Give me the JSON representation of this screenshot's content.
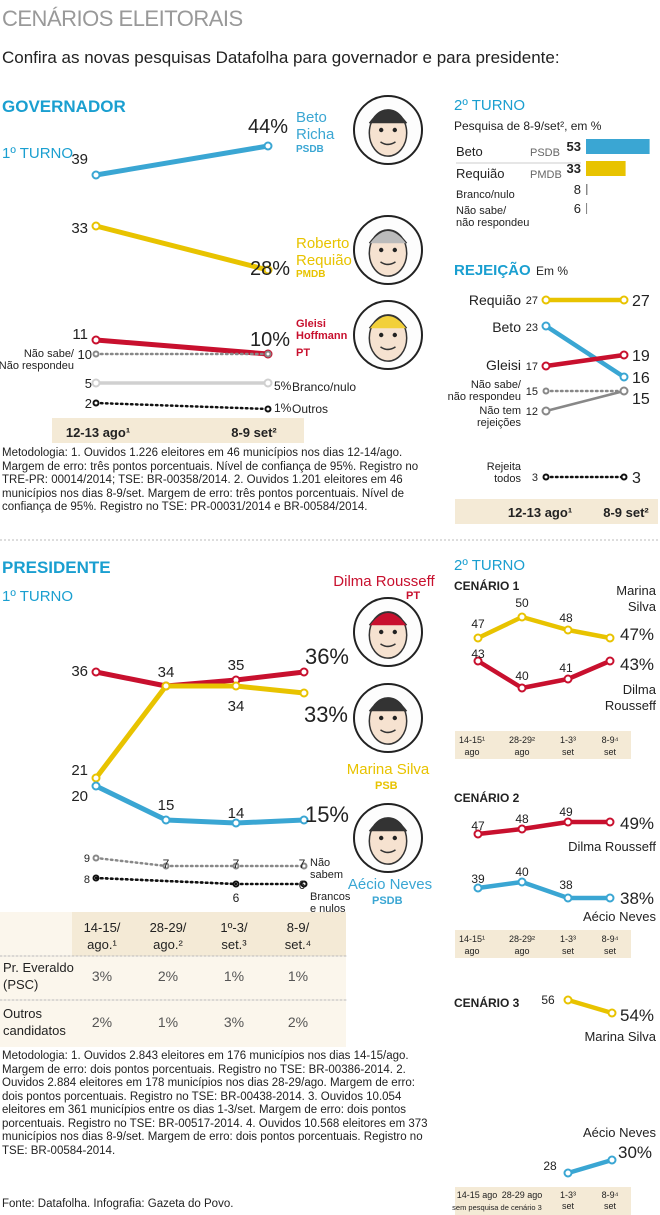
{
  "header": {
    "title": "CENÁRIOS ELEITORAIS",
    "subtitle": "Confira as novas pesquisas Datafolha para governador e para presidente:"
  },
  "colors": {
    "blue": "#3aa6d3",
    "yellow": "#e8c300",
    "red": "#c8102e",
    "gray": "#888888",
    "lightgray": "#d0d0d0",
    "beige": "#f4ead6",
    "accent": "#1a9fd0"
  },
  "chart_data": [
    {
      "id": "governador-1turno",
      "type": "line",
      "title": "GOVERNADOR",
      "subtitle": "1º TURNO",
      "categories": [
        "12-13 ago¹",
        "8-9 set²"
      ],
      "series": [
        {
          "name": "Beto Richa",
          "party": "PSDB",
          "color": "blue",
          "values": [
            39,
            44
          ],
          "labels": [
            "39",
            "44%"
          ]
        },
        {
          "name": "Roberto Requião",
          "party": "PMDB",
          "color": "yellow",
          "values": [
            33,
            28
          ],
          "labels": [
            "33",
            "28%"
          ]
        },
        {
          "name": "Gleisi Hoffmann",
          "party": "PT",
          "color": "red",
          "values": [
            11,
            10
          ],
          "labels": [
            "11",
            "10%"
          ]
        },
        {
          "name": "Não sabe/ Não respondeu",
          "color": "gray",
          "style": "dotted",
          "values": [
            10,
            10
          ],
          "labels": [
            "10",
            ""
          ]
        },
        {
          "name": "Branco/nulo",
          "color": "lightgray",
          "values": [
            5,
            5
          ],
          "labels": [
            "5",
            "5%"
          ]
        },
        {
          "name": "Outros",
          "color": "black",
          "style": "dotted",
          "values": [
            2,
            1
          ],
          "labels": [
            "2",
            "1%"
          ]
        }
      ]
    },
    {
      "id": "governador-2turno",
      "type": "bar",
      "title": "2º TURNO",
      "subtitle": "Pesquisa de 8-9/set², em %",
      "categories": [
        "Beto",
        "Requião",
        "Branco/nulo",
        "Não sabe/ não respondeu"
      ],
      "parties": [
        "PSDB",
        "PMDB",
        "",
        ""
      ],
      "values": [
        53,
        33,
        8,
        6
      ],
      "colors": [
        "blue",
        "yellow",
        "gray",
        "gray"
      ]
    },
    {
      "id": "governador-rejeicao",
      "type": "line",
      "title": "REJEIÇÃO",
      "subtitle": "Em %",
      "categories": [
        "12-13 ago¹",
        "8-9 set²"
      ],
      "series": [
        {
          "name": "Requião",
          "color": "yellow",
          "values": [
            27,
            27
          ]
        },
        {
          "name": "Beto",
          "color": "blue",
          "values": [
            23,
            16
          ]
        },
        {
          "name": "Gleisi",
          "color": "red",
          "values": [
            17,
            19
          ]
        },
        {
          "name": "Não sabe/ não respondeu",
          "color": "gray",
          "style": "dotted",
          "values": [
            15,
            15
          ]
        },
        {
          "name": "Não tem rejeições",
          "color": "gray",
          "values": [
            12,
            15
          ]
        },
        {
          "name": "Rejeita todos",
          "color": "black",
          "style": "dotted",
          "values": [
            3,
            3
          ]
        }
      ]
    },
    {
      "id": "presidente-1turno",
      "type": "line",
      "title": "PRESIDENTE",
      "subtitle": "1º TURNO",
      "categories": [
        "14-15/ ago.¹",
        "28-29/ ago.²",
        "1º-3/ set.³",
        "8-9/ set.⁴"
      ],
      "series": [
        {
          "name": "Dilma Rousseff",
          "party": "PT",
          "color": "red",
          "values": [
            36,
            34,
            35,
            36
          ]
        },
        {
          "name": "Marina Silva",
          "party": "PSB",
          "color": "yellow",
          "values": [
            21,
            34,
            34,
            33
          ]
        },
        {
          "name": "Aécio Neves",
          "party": "PSDB",
          "color": "blue",
          "values": [
            20,
            15,
            14,
            15
          ]
        },
        {
          "name": "Não sabem",
          "color": "gray",
          "style": "dotted",
          "values": [
            9,
            7,
            7,
            7
          ]
        },
        {
          "name": "Brancos e nulos",
          "color": "black",
          "style": "dotted",
          "values": [
            8,
            null,
            6,
            6
          ]
        }
      ],
      "table": {
        "rows": [
          {
            "label": "Pr. Everaldo (PSC)",
            "values": [
              "3%",
              "2%",
              "1%",
              "1%"
            ]
          },
          {
            "label": "Outros candidatos",
            "values": [
              "2%",
              "1%",
              "3%",
              "2%"
            ]
          }
        ]
      }
    },
    {
      "id": "presidente-2turno-cenario1",
      "type": "line",
      "title": "CENÁRIO 1",
      "categories": [
        "14-15¹ ago",
        "28-29² ago",
        "1-3³ set",
        "8-9⁴ set"
      ],
      "series": [
        {
          "name": "Marina Silva",
          "color": "yellow",
          "values": [
            47,
            50,
            48,
            47
          ]
        },
        {
          "name": "Dilma Rousseff",
          "color": "red",
          "values": [
            43,
            40,
            41,
            43
          ]
        }
      ]
    },
    {
      "id": "presidente-2turno-cenario2",
      "type": "line",
      "title": "CENÁRIO 2",
      "categories": [
        "14-15¹ ago",
        "28-29² ago",
        "1-3³ set",
        "8-9⁴ set"
      ],
      "series": [
        {
          "name": "Dilma Rousseff",
          "color": "red",
          "values": [
            47,
            48,
            49,
            49
          ]
        },
        {
          "name": "Aécio Neves",
          "color": "blue",
          "values": [
            39,
            40,
            38,
            38
          ]
        }
      ]
    },
    {
      "id": "presidente-2turno-cenario3",
      "type": "line",
      "title": "CENÁRIO 3",
      "categories": [
        "14-15 ago",
        "28-29 ago",
        "1-3³ set",
        "8-9⁴ set"
      ],
      "note": "sem pesquisa de cenário 3",
      "series": [
        {
          "name": "Marina Silva",
          "color": "yellow",
          "values": [
            null,
            null,
            56,
            54
          ]
        },
        {
          "name": "Aécio Neves",
          "color": "blue",
          "values": [
            null,
            null,
            28,
            30
          ]
        }
      ]
    }
  ],
  "labels": {
    "gov_title": "GOVERNADOR",
    "gov_1turno": "1º TURNO",
    "beto_name": "Beto Richa",
    "beto_party": "PSDB",
    "requiao_name": "Roberto Requião",
    "requiao_party": "PMDB",
    "gleisi_name": "Gleisi Hoffmann",
    "gleisi_party": "PT",
    "nao_sabe": "Não sabe/ Não respondeu",
    "branco": "Branco/nulo",
    "outros": "Outros",
    "gov_2turno": "2º TURNO",
    "gov_2turno_sub": "Pesquisa de 8-9/set², em %",
    "rej_title": "REJEIÇÃO",
    "rej_sub": "Em %",
    "rej_nao_sabe": "Não sabe/ não respondeu",
    "rej_nao_tem": "Não tem rejeições",
    "rej_todos": "Rejeita todos",
    "pres_title": "PRESIDENTE",
    "pres_1turno": "1º TURNO",
    "dilma_name": "Dilma Rousseff",
    "dilma_party": "PT",
    "marina_name": "Marina Silva",
    "marina_party": "PSB",
    "aecio_name": "Aécio Neves",
    "aecio_party": "PSDB",
    "nao_sabem": "Não sabem",
    "brancos_nulos": "Brancos e nulos",
    "pres_2turno": "2º TURNO",
    "cenario1": "CENÁRIO 1",
    "cenario2": "CENÁRIO 2",
    "cenario3": "CENÁRIO 3",
    "sem_pesquisa": "sem pesquisa de cenário 3"
  },
  "metodologia_gov": "Metodologia: 1. Ouvidos 1.226 eleitores em 46 municípios nos dias 12-14/ago. Margem de erro: três pontos porcentuais. Nível de confiança de 95%. Registro no TRE-PR: 00014/2014; TSE: BR-00358/2014. 2. Ouvidos 1.201 eleitores em 46 municípios nos dias 8-9/set. Margem de erro: três pontos porcentuais. Nível de confiança de 95%. Registro no TSE: PR-00031/2014 e BR-00584/2014.",
  "metodologia_pres": "Metodologia: 1. Ouvidos 2.843 eleitores em 176 municípios nos dias 14-15/ago. Margem de erro: dois pontos porcentuais. Registro no TSE: BR-00386-2014. 2. Ouvidos 2.884 eleitores em 178 municípios nos dias 28-29/ago. Margem de erro: dois pontos porcentuais. Registro no TSE: BR-00438-2014. 3. Ouvidos 10.054 eleitores em 361 municípios entre os dias 1-3/set. Margem de erro: dois pontos porcentuais. Registro no TSE: BR-00517-2014. 4. Ouvidos 10.568 eleitores em 373 municípios nos dias 8-9/set. Margem de erro: dois pontos porcentuais. Registro no TSE: BR-00584-2014.",
  "fonte": "Fonte: Datafolha. Infografia: Gazeta do Povo."
}
